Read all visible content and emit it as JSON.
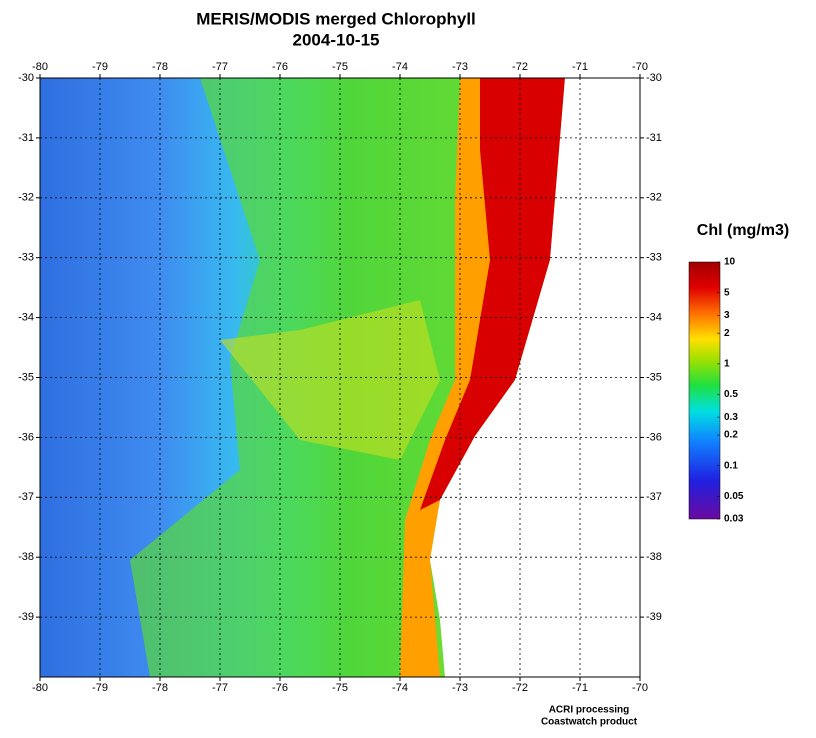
{
  "map": {
    "title": "MERIS/MODIS merged Chlorophyll",
    "subtitle": "2004-10-15",
    "xlim": [
      -80,
      -70
    ],
    "ylim": [
      -40,
      -30
    ],
    "xticks": [
      -80,
      -79,
      -78,
      -77,
      -76,
      -75,
      -74,
      -73,
      -72,
      -71,
      -70
    ],
    "yticks": [
      -30,
      -31,
      -32,
      -33,
      -34,
      -35,
      -36,
      -37,
      -38,
      -39
    ],
    "grid": true,
    "colorbar": {
      "title": "Chl (mg/m3)",
      "scale": "log",
      "lim": [
        0.03,
        10
      ],
      "ticks": [
        10,
        5,
        3,
        2,
        1,
        0.5,
        0.3,
        0.2,
        0.1,
        0.05,
        0.03
      ]
    },
    "credits": [
      "ACRI processing",
      "Coastwatch product"
    ]
  }
}
